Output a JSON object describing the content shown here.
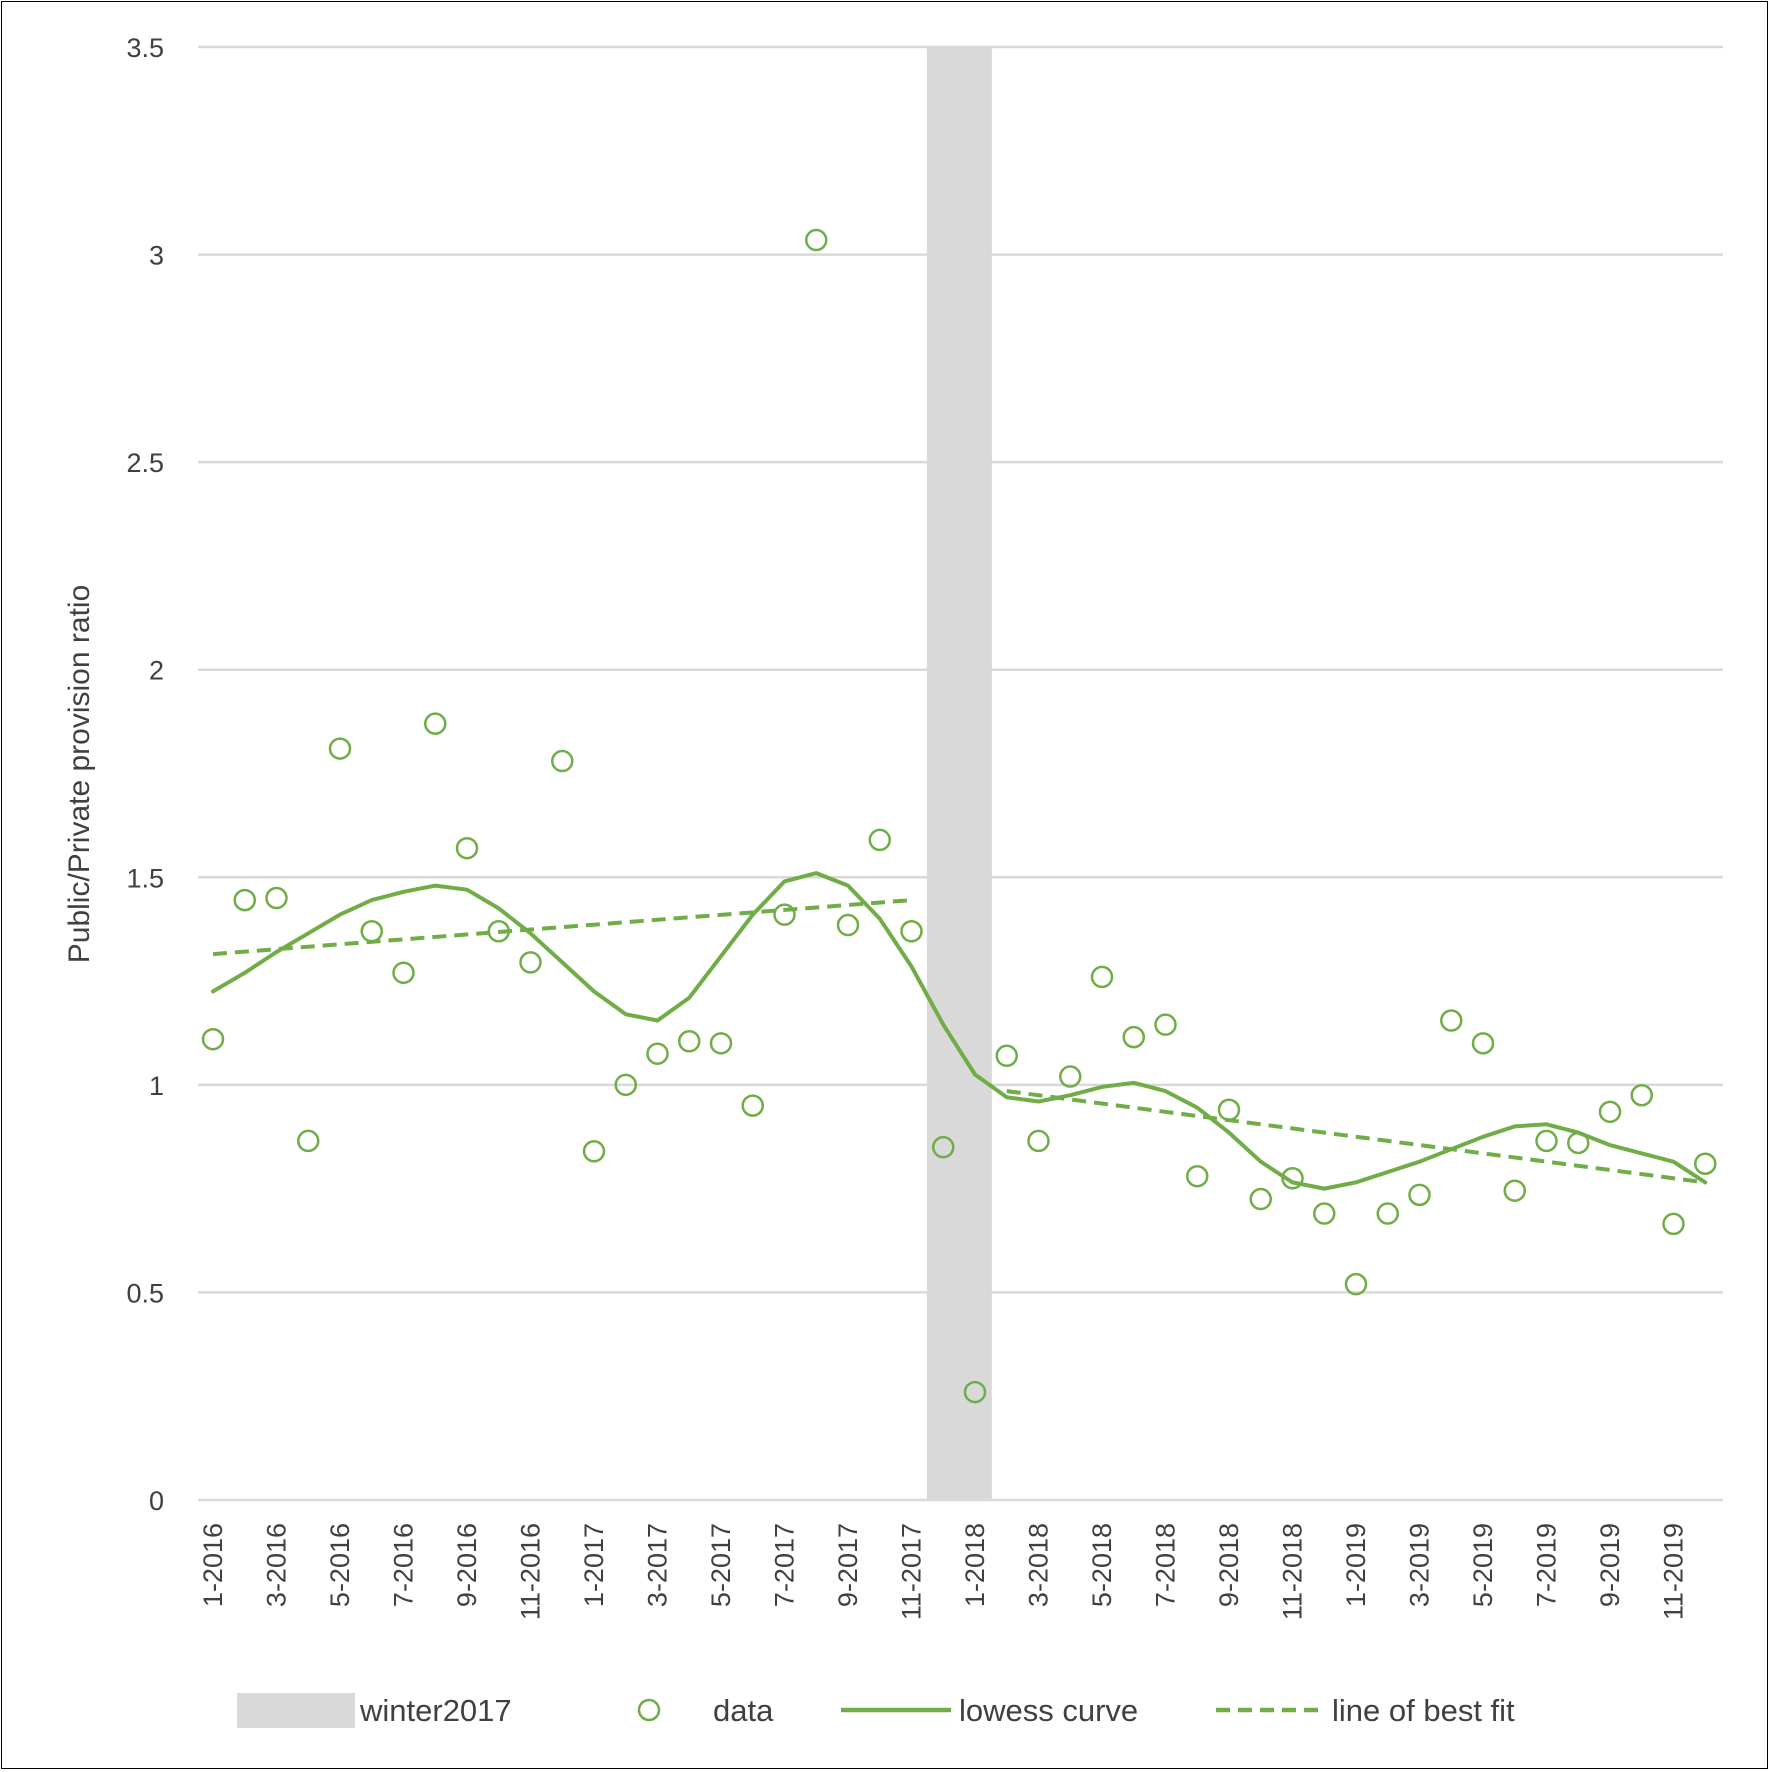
{
  "chart_data": {
    "type": "scatter",
    "ylabel": "Public/Private provision ratio",
    "xlabel": "",
    "ylim": [
      0,
      3.5
    ],
    "yticks": [
      "0",
      "0.5",
      "1",
      "1.5",
      "2",
      "2.5",
      "3",
      "3.5"
    ],
    "grid": true,
    "legend_position": "bottom",
    "x": [
      "1-2016",
      "2-2016",
      "3-2016",
      "4-2016",
      "5-2016",
      "6-2016",
      "7-2016",
      "8-2016",
      "9-2016",
      "10-2016",
      "11-2016",
      "12-2016",
      "1-2017",
      "2-2017",
      "3-2017",
      "4-2017",
      "5-2017",
      "6-2017",
      "7-2017",
      "8-2017",
      "9-2017",
      "10-2017",
      "11-2017",
      "12-2017",
      "1-2018",
      "2-2018",
      "3-2018",
      "4-2018",
      "5-2018",
      "6-2018",
      "7-2018",
      "8-2018",
      "9-2018",
      "10-2018",
      "11-2018",
      "12-2018",
      "1-2019",
      "2-2019",
      "3-2019",
      "4-2019",
      "5-2019",
      "6-2019",
      "7-2019",
      "8-2019",
      "9-2019",
      "10-2019",
      "11-2019",
      "12-2019"
    ],
    "xtick_labels": [
      "1-2016",
      "3-2016",
      "5-2016",
      "7-2016",
      "9-2016",
      "11-2016",
      "1-2017",
      "3-2017",
      "5-2017",
      "7-2017",
      "9-2017",
      "11-2017",
      "1-2018",
      "3-2018",
      "5-2018",
      "7-2018",
      "9-2018",
      "11-2018",
      "1-2019",
      "3-2019",
      "5-2019",
      "7-2019",
      "9-2019",
      "11-2019"
    ],
    "shaded_region": {
      "name": "winter2017",
      "from": "12-2017",
      "to": "1-2018",
      "color": "#d9d9d9"
    },
    "series": [
      {
        "name": "data",
        "kind": "scatter",
        "color": "#70ad47",
        "values": [
          1.11,
          1.445,
          1.45,
          0.865,
          1.81,
          1.37,
          1.27,
          1.87,
          1.57,
          1.37,
          1.295,
          1.78,
          0.84,
          1.0,
          1.075,
          1.105,
          1.1,
          0.95,
          1.41,
          3.035,
          1.385,
          1.59,
          1.37,
          0.85,
          0.26,
          1.07,
          0.865,
          1.02,
          1.26,
          1.115,
          1.145,
          0.78,
          0.94,
          0.725,
          0.775,
          0.69,
          0.52,
          0.69,
          0.735,
          1.155,
          1.1,
          0.745,
          0.865,
          0.86,
          0.935,
          0.975,
          0.665,
          0.81
        ]
      },
      {
        "name": "lowess curve",
        "kind": "line",
        "dash": "solid",
        "color": "#70ad47",
        "values": [
          1.225,
          1.27,
          1.32,
          1.365,
          1.41,
          1.445,
          1.465,
          1.48,
          1.47,
          1.425,
          1.365,
          1.295,
          1.225,
          1.17,
          1.155,
          1.21,
          1.31,
          1.41,
          1.49,
          1.51,
          1.48,
          1.4,
          1.285,
          1.145,
          1.025,
          0.97,
          0.96,
          0.975,
          0.995,
          1.005,
          0.985,
          0.945,
          0.885,
          0.815,
          0.765,
          0.75,
          0.765,
          0.79,
          0.815,
          0.845,
          0.875,
          0.9,
          0.905,
          0.885,
          0.855,
          0.835,
          0.815,
          0.765
        ]
      },
      {
        "name": "line of best fit",
        "kind": "line",
        "dash": "dashed",
        "color": "#70ad47",
        "segments": [
          {
            "from": "1-2016",
            "to": "11-2017",
            "start": 1.315,
            "end": 1.445
          },
          {
            "from": "2-2018",
            "to": "12-2019",
            "start": 0.985,
            "end": 0.765
          }
        ]
      }
    ]
  }
}
